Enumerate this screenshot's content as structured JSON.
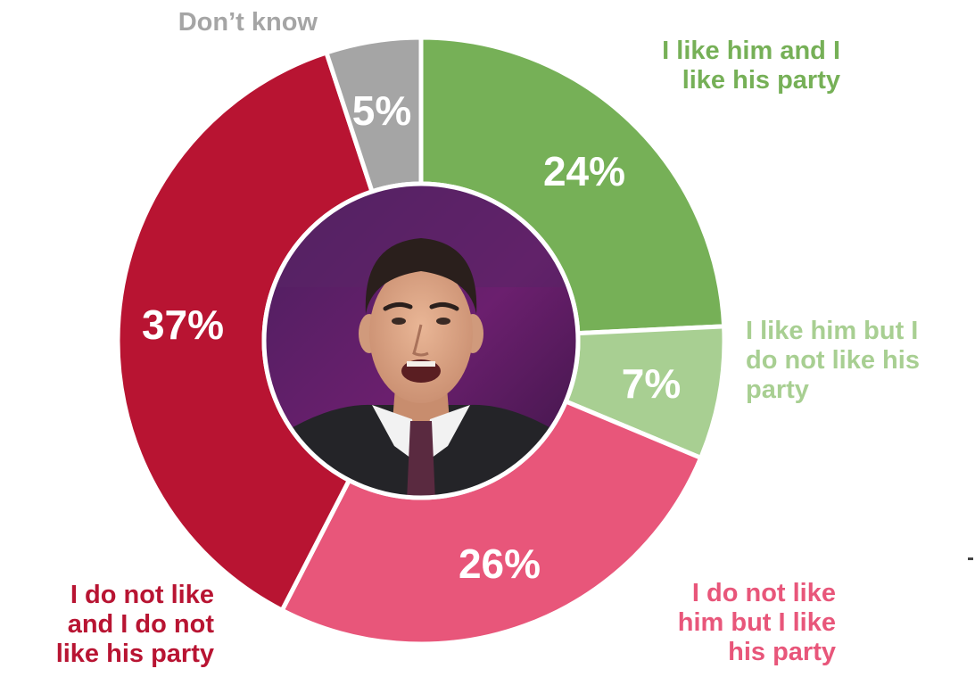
{
  "chart_data": {
    "type": "pie",
    "variant": "donut",
    "title": "",
    "segments": [
      {
        "key": "like_like",
        "label_lines": [
          "I like him and I",
          "like his party"
        ],
        "value": 24,
        "value_label": "24%",
        "color": "#76b057"
      },
      {
        "key": "like_dislike",
        "label_lines": [
          "I like him but I",
          "do not like his",
          "party"
        ],
        "value": 7,
        "value_label": "7%",
        "color": "#a8cf92"
      },
      {
        "key": "dislike_like",
        "label_lines": [
          "I do not like",
          "him but I like",
          "his party"
        ],
        "value": 26,
        "value_label": "26%",
        "color": "#e8567a"
      },
      {
        "key": "dislike_dislike",
        "label_lines": [
          "I do not like",
          "and I do not",
          "like his party"
        ],
        "value": 37,
        "value_label": "37%",
        "color": "#b81432"
      },
      {
        "key": "dont_know",
        "label_lines": [
          "Don’t know"
        ],
        "value": 5,
        "value_label": "5%",
        "color": "#a5a5a5"
      }
    ],
    "center_image": "portrait-photo",
    "legend": "none"
  },
  "colors": {
    "separator": "#ffffff",
    "label_like_like": "#76b057",
    "label_like_dislike": "#a8cf92",
    "label_dislike_like": "#e8567a",
    "label_dislike_dislike": "#b81432",
    "label_dont_know": "#a5a5a5"
  }
}
